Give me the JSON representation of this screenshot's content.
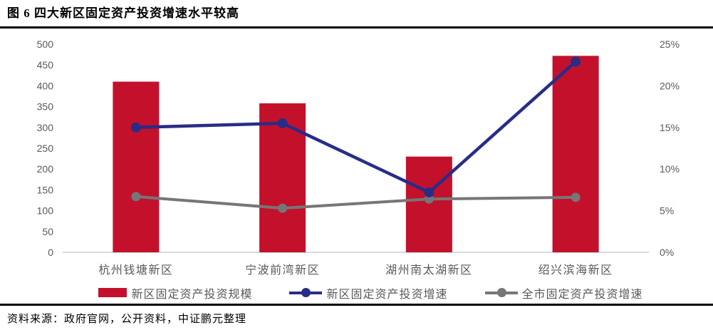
{
  "figure": {
    "title": "图 6 四大新区固定资产投资增速水平较高",
    "source": "资料来源：政府官网，公开资料，中证鹏元整理"
  },
  "chart_data": {
    "type": "combo-bar-line",
    "title": "图 6 四大新区固定资产投资增速水平较高",
    "categories": [
      "杭州钱塘新区",
      "宁波前湾新区",
      "湖州南太湖新区",
      "绍兴滨海新区"
    ],
    "bar_series": {
      "name": "新区固定资产投资规模",
      "axis": "left",
      "values": [
        410,
        358,
        230,
        472
      ],
      "color": "#C3112C"
    },
    "line_series": [
      {
        "name": "新区固定资产投资增速",
        "axis": "right",
        "values": [
          15.0,
          15.5,
          7.2,
          22.9
        ],
        "color": "#292C87"
      },
      {
        "name": "全市固定资产投资增速",
        "axis": "right",
        "values": [
          6.7,
          5.3,
          6.4,
          6.6
        ],
        "color": "#767676"
      }
    ],
    "left_axis": {
      "min": 0,
      "max": 500,
      "step": 50,
      "ticks": [
        "0",
        "50",
        "100",
        "150",
        "200",
        "250",
        "300",
        "350",
        "400",
        "450",
        "500"
      ]
    },
    "right_axis": {
      "min": 0,
      "max": 25,
      "step": 5,
      "suffix": "%",
      "ticks": [
        "0%",
        "5%",
        "10%",
        "15%",
        "20%",
        "25%"
      ]
    },
    "grid": "none",
    "legend_position": "bottom",
    "colors": {
      "axis_label": "#595959",
      "baseline": "#D9D9D9",
      "bar": "#C3112C",
      "line_new_district": "#292C87",
      "line_city": "#767676"
    }
  }
}
